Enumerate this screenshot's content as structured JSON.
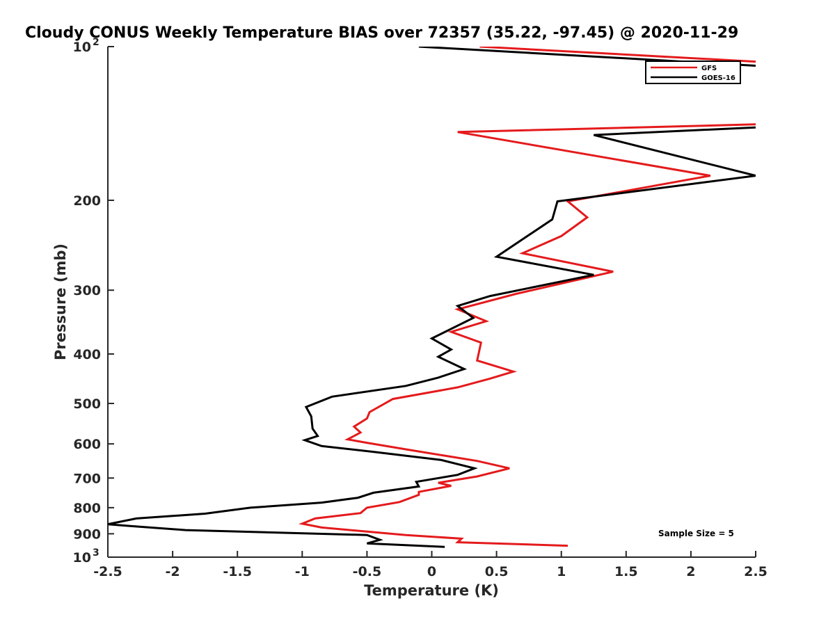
{
  "chart_data": {
    "type": "line",
    "title": "Cloudy CONUS Weekly Temperature BIAS over 72357 (35.22, -97.45) @ 2020-11-29",
    "xlabel": "Temperature (K)",
    "ylabel": "Pressure (mb)",
    "xlim": [
      -2.5,
      2.5
    ],
    "ylim": [
      100,
      1000
    ],
    "y_scale": "log",
    "y_reversed": true,
    "grid": false,
    "legend_position": "top-right",
    "x_ticks": [
      "-2.5",
      "-2",
      "-1.5",
      "-1",
      "-0.5",
      "0",
      "0.5",
      "1",
      "1.5",
      "2",
      "2.5"
    ],
    "x_tick_values": [
      -2.5,
      -2,
      -1.5,
      -1,
      -0.5,
      0,
      0.5,
      1,
      1.5,
      2,
      2.5
    ],
    "y_ticks": [
      {
        "value": 100,
        "base": "10",
        "exp": "2"
      },
      {
        "value": 200,
        "label": "200"
      },
      {
        "value": 300,
        "label": "300"
      },
      {
        "value": 400,
        "label": "400"
      },
      {
        "value": 500,
        "label": "500"
      },
      {
        "value": 600,
        "label": "600"
      },
      {
        "value": 700,
        "label": "700"
      },
      {
        "value": 800,
        "label": "800"
      },
      {
        "value": 900,
        "label": "900"
      },
      {
        "value": 1000,
        "base": "10",
        "exp": "3"
      }
    ],
    "annotation": "Sample Size = 5",
    "series": [
      {
        "name": "GFS",
        "color": "#e41a1c",
        "points": [
          [
            1.05,
            950
          ],
          [
            0.2,
            935
          ],
          [
            0.23,
            920
          ],
          [
            -0.2,
            905
          ],
          [
            -0.85,
            875
          ],
          [
            -1.0,
            860
          ],
          [
            -0.9,
            840
          ],
          [
            -0.55,
            820
          ],
          [
            -0.5,
            800
          ],
          [
            -0.25,
            780
          ],
          [
            -0.1,
            755
          ],
          [
            -0.1,
            745
          ],
          [
            0.15,
            725
          ],
          [
            0.05,
            715
          ],
          [
            0.35,
            695
          ],
          [
            0.6,
            670
          ],
          [
            0.35,
            648
          ],
          [
            -0.2,
            615
          ],
          [
            -0.5,
            597
          ],
          [
            -0.65,
            588
          ],
          [
            -0.55,
            570
          ],
          [
            -0.6,
            555
          ],
          [
            -0.5,
            535
          ],
          [
            -0.48,
            520
          ],
          [
            -0.3,
            490
          ],
          [
            0.2,
            465
          ],
          [
            0.45,
            447
          ],
          [
            0.63,
            433
          ],
          [
            0.35,
            412
          ],
          [
            0.38,
            380
          ],
          [
            0.15,
            362
          ],
          [
            0.42,
            345
          ],
          [
            0.2,
            327
          ],
          [
            0.65,
            305
          ],
          [
            1.4,
            276
          ],
          [
            0.7,
            254
          ],
          [
            1.0,
            235
          ],
          [
            1.2,
            216
          ],
          [
            1.05,
            201
          ],
          [
            2.15,
            179
          ],
          [
            0.2,
            147
          ],
          [
            2.5,
            142
          ]
        ],
        "top_segment": [
          [
            0.37,
            100
          ],
          [
            2.5,
            107
          ]
        ]
      },
      {
        "name": "GOES-16",
        "color": "#000000",
        "points": [
          [
            0.1,
            955
          ],
          [
            -0.5,
            940
          ],
          [
            -0.4,
            925
          ],
          [
            -0.5,
            905
          ],
          [
            -1.9,
            885
          ],
          [
            -2.3,
            870
          ],
          [
            -2.5,
            862
          ],
          [
            -2.28,
            840
          ],
          [
            -1.75,
            822
          ],
          [
            -1.4,
            800
          ],
          [
            -0.85,
            782
          ],
          [
            -0.57,
            765
          ],
          [
            -0.45,
            748
          ],
          [
            -0.1,
            727
          ],
          [
            -0.12,
            712
          ],
          [
            0.2,
            690
          ],
          [
            0.33,
            670
          ],
          [
            0.07,
            645
          ],
          [
            -0.45,
            622
          ],
          [
            -0.85,
            606
          ],
          [
            -0.98,
            590
          ],
          [
            -0.88,
            579
          ],
          [
            -0.92,
            560
          ],
          [
            -0.93,
            530
          ],
          [
            -0.97,
            508
          ],
          [
            -0.77,
            485
          ],
          [
            -0.2,
            462
          ],
          [
            0.05,
            445
          ],
          [
            0.25,
            428
          ],
          [
            0.05,
            405
          ],
          [
            0.15,
            392
          ],
          [
            0.0,
            373
          ],
          [
            0.32,
            340
          ],
          [
            0.2,
            322
          ],
          [
            0.45,
            308
          ],
          [
            1.25,
            280
          ],
          [
            0.5,
            258
          ],
          [
            0.93,
            218
          ],
          [
            0.97,
            201
          ],
          [
            2.5,
            179
          ],
          [
            1.25,
            149
          ],
          [
            2.5,
            144
          ]
        ],
        "top_segment": [
          [
            -0.1,
            100
          ],
          [
            2.5,
            109
          ]
        ]
      }
    ]
  }
}
